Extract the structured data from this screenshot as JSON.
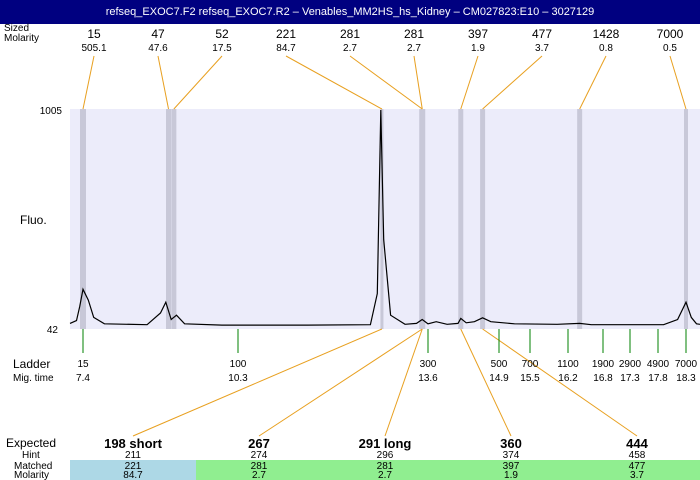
{
  "title": "refseq_EXOC7.F2  refseq_EXOC7.R2 – Venables_MM2HS_hs_Kidney – CM027823:E10 – 3027129",
  "labels": {
    "sized": "Sized",
    "molarity": "Molarity",
    "fluo": "Fluo.",
    "ladder": "Ladder",
    "mig_time": "Mig. time",
    "expected": "Expected",
    "hint": "Hint",
    "matched": "Matched",
    "molarity_bottom": "Molarity"
  },
  "colors": {
    "plot_bg": "#ececfa",
    "band": "#c8c8d8",
    "leader": "#e8a020",
    "ladder_tick": "#008000",
    "trace": "#000000",
    "cell_blue": "#add8e6",
    "cell_green": "#90ee90"
  },
  "chart_data": {
    "type": "line",
    "y_axis": {
      "top": "1005",
      "bottom": "42"
    },
    "peaks": [
      {
        "size": "15",
        "molarity": "505.1",
        "mig": 7.4
      },
      {
        "size": "47",
        "molarity": "47.6",
        "mig": 9.0
      },
      {
        "size": "52",
        "molarity": "17.5",
        "mig": 9.1
      },
      {
        "size": "221",
        "molarity": "84.7",
        "mig": 12.8
      },
      {
        "size": "281",
        "molarity": "2.7",
        "mig": 13.5
      },
      {
        "size": "281",
        "molarity": "2.7",
        "mig": 13.5
      },
      {
        "size": "397",
        "molarity": "1.9",
        "mig": 14.2
      },
      {
        "size": "477",
        "molarity": "3.7",
        "mig": 14.6
      },
      {
        "size": "1428",
        "molarity": "0.8",
        "mig": 16.4
      },
      {
        "size": "7000",
        "molarity": "0.5",
        "mig": 18.3
      }
    ],
    "ladder": [
      {
        "size": "15",
        "mig": "7.4"
      },
      {
        "size": "100",
        "mig": "10.3"
      },
      {
        "size": "300",
        "mig": "13.6"
      },
      {
        "size": "500",
        "mig": "14.9"
      },
      {
        "size": "700",
        "mig": "15.5"
      },
      {
        "size": "1100",
        "mig": "16.2"
      },
      {
        "size": "1900",
        "mig": "16.8"
      },
      {
        "size": "2900",
        "mig": "17.3"
      },
      {
        "size": "4900",
        "mig": "17.8"
      },
      {
        "size": "7000",
        "mig": "18.3"
      }
    ],
    "expected": [
      {
        "label": "198 short",
        "hint": "211",
        "matched": "221",
        "molarity": "84.7",
        "peak": 3,
        "status": "blue"
      },
      {
        "label": "267",
        "hint": "274",
        "matched": "281",
        "molarity": "2.7",
        "peak": 4,
        "status": "green"
      },
      {
        "label": "291 long",
        "hint": "296",
        "matched": "281",
        "molarity": "2.7",
        "peak": 5,
        "status": "green"
      },
      {
        "label": "360",
        "hint": "374",
        "matched": "397",
        "molarity": "1.9",
        "peak": 6,
        "status": "green"
      },
      {
        "label": "444",
        "hint": "458",
        "matched": "477",
        "molarity": "3.7",
        "peak": 7,
        "status": "green"
      }
    ],
    "trace": [
      [
        7.0,
        0.012
      ],
      [
        7.2,
        0.025
      ],
      [
        7.3,
        0.09
      ],
      [
        7.4,
        0.17
      ],
      [
        7.5,
        0.12
      ],
      [
        7.6,
        0.04
      ],
      [
        7.8,
        0.01
      ],
      [
        8.6,
        0.006
      ],
      [
        8.85,
        0.06
      ],
      [
        8.95,
        0.11
      ],
      [
        9.05,
        0.03
      ],
      [
        9.15,
        0.05
      ],
      [
        9.3,
        0.01
      ],
      [
        10.0,
        0.004
      ],
      [
        11.5,
        0.004
      ],
      [
        12.6,
        0.006
      ],
      [
        12.72,
        0.15
      ],
      [
        12.78,
        1.0
      ],
      [
        12.83,
        0.4
      ],
      [
        12.95,
        0.05
      ],
      [
        13.2,
        0.008
      ],
      [
        13.4,
        0.012
      ],
      [
        13.5,
        0.03
      ],
      [
        13.6,
        0.01
      ],
      [
        13.75,
        0.02
      ],
      [
        13.95,
        0.008
      ],
      [
        14.15,
        0.012
      ],
      [
        14.2,
        0.035
      ],
      [
        14.3,
        0.015
      ],
      [
        14.45,
        0.02
      ],
      [
        14.6,
        0.038
      ],
      [
        14.75,
        0.02
      ],
      [
        15.2,
        0.01
      ],
      [
        16.0,
        0.008
      ],
      [
        16.4,
        0.012
      ],
      [
        16.6,
        0.006
      ],
      [
        17.9,
        0.006
      ],
      [
        18.15,
        0.03
      ],
      [
        18.3,
        0.11
      ],
      [
        18.45,
        0.04
      ],
      [
        18.6,
        0.01
      ]
    ]
  }
}
